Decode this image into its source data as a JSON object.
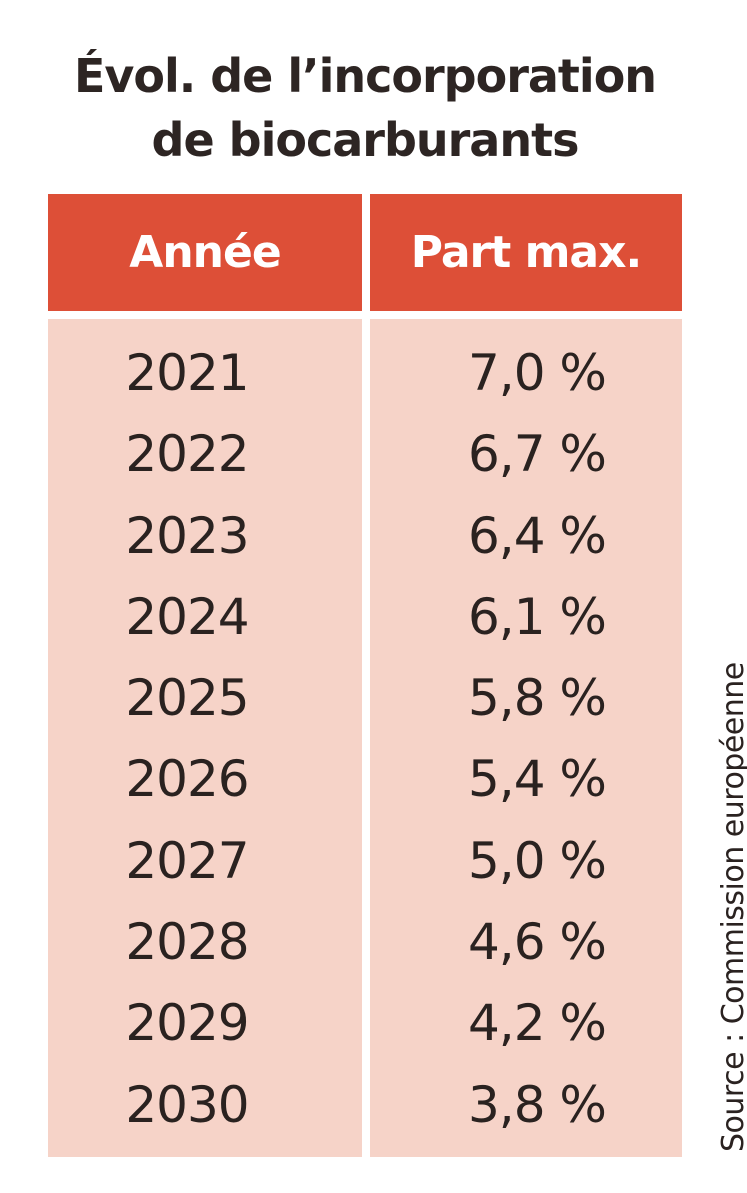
{
  "chart_data": {
    "type": "table",
    "title_lines": [
      "Évol. de l’incorporation",
      "de biocarburants"
    ],
    "columns": [
      "Année",
      "Part max."
    ],
    "rows": [
      [
        "2021",
        "7,0 %"
      ],
      [
        "2022",
        "6,7 %"
      ],
      [
        "2023",
        "6,4 %"
      ],
      [
        "2024",
        "6,1 %"
      ],
      [
        "2025",
        "5,8 %"
      ],
      [
        "2026",
        "5,4 %"
      ],
      [
        "2027",
        "5,0 %"
      ],
      [
        "2028",
        "4,6 %"
      ],
      [
        "2029",
        "4,2 %"
      ],
      [
        "2030",
        "3,8 %"
      ]
    ],
    "years": [
      2021,
      2022,
      2023,
      2024,
      2025,
      2026,
      2027,
      2028,
      2029,
      2030
    ],
    "values_percent": [
      7.0,
      6.7,
      6.4,
      6.1,
      5.8,
      5.4,
      5.0,
      4.6,
      4.2,
      3.8
    ],
    "source": "Source : Commission européenne",
    "colors": {
      "header_bg": "#dd4f37",
      "header_text": "#ffffff",
      "body_bg": "#f6d3c8",
      "text": "#2a2220"
    }
  }
}
